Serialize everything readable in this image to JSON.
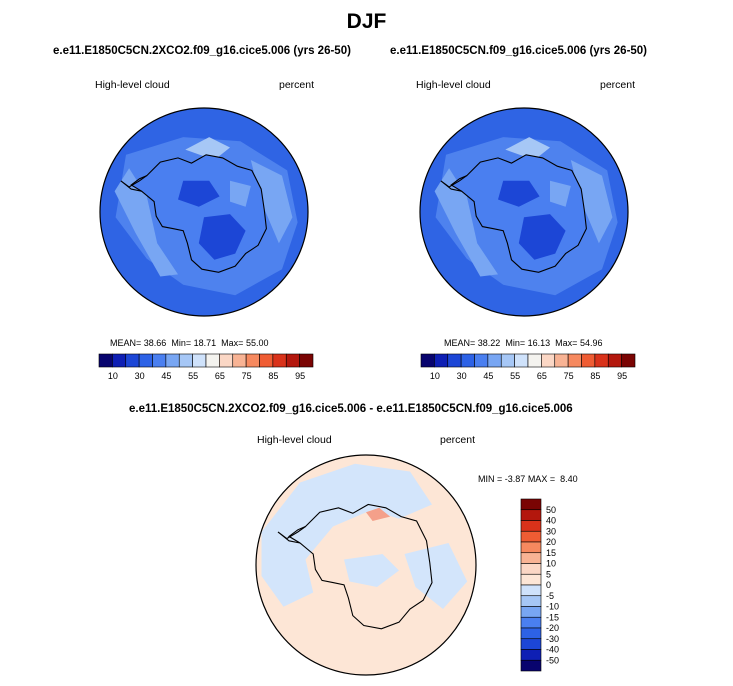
{
  "title": "DJF",
  "colormap_abs": [
    "#08046e",
    "#0e1fb4",
    "#1c46d6",
    "#2d62e6",
    "#4a7ff0",
    "#78a6f3",
    "#a6c7f6",
    "#cfe2fb",
    "#f4f3ef",
    "#fbd7c5",
    "#f8b394",
    "#f6895f",
    "#ef5c33",
    "#d9321a",
    "#b3170d",
    "#7a0403"
  ],
  "colormap_diff": [
    "#08046e",
    "#0e1fb4",
    "#1c46d6",
    "#2d62e6",
    "#4a7ff0",
    "#78a6f3",
    "#a6c7f6",
    "#cfe2fb",
    "#fde6d6",
    "#fbd7c5",
    "#f8b394",
    "#f6895f",
    "#ef5c33",
    "#d9321a",
    "#b3170d",
    "#7a0403"
  ],
  "map_colors": {
    "ocean_base": "#2f64e4",
    "ocean_light": "#4e82ee",
    "ice_base": "#4a7ff0",
    "ice_dark": "#1c46d6",
    "ice_light": "#78a6f3",
    "pale": "#a6c7f6",
    "diff_pos": "#fde6d6",
    "diff_neg": "#d3e5fb",
    "diff_hot": "#f4a08a",
    "coast": "#000000"
  },
  "chart_data": [
    {
      "type": "heatmap",
      "title": "e.e11.E1850C5CN.2XCO2.f09_g16.cice5.006 (yrs 26-50)",
      "left_label": "High-level cloud",
      "right_label": "percent",
      "stats_mean_label": "MEAN=",
      "stats_mean": "38.66",
      "stats_min_label": "Min=",
      "stats_min": "18.71",
      "stats_max_label": "Max=",
      "stats_max": "55.00",
      "colorbar_ticks": [
        "10",
        "30",
        "45",
        "55",
        "65",
        "75",
        "85",
        "95"
      ]
    },
    {
      "type": "heatmap",
      "title": "e.e11.E1850C5CN.f09_g16.cice5.006 (yrs 26-50)",
      "left_label": "High-level cloud",
      "right_label": "percent",
      "stats_mean_label": "MEAN=",
      "stats_mean": "38.22",
      "stats_min_label": "Min=",
      "stats_min": "16.13",
      "stats_max_label": "Max=",
      "stats_max": "54.96",
      "colorbar_ticks": [
        "10",
        "30",
        "45",
        "55",
        "65",
        "75",
        "85",
        "95"
      ]
    },
    {
      "type": "heatmap",
      "title": "e.e11.E1850C5CN.2XCO2.f09_g16.cice5.006 - e.e11.E1850C5CN.f09_g16.cice5.006",
      "left_label": "High-level cloud",
      "right_label": "percent",
      "stats_min_label": "MIN =",
      "stats_min": "-3.87",
      "stats_max_label": "MAX =",
      "stats_max": "8.40",
      "colorbar_ticks": [
        "50",
        "40",
        "30",
        "20",
        "15",
        "10",
        "5",
        "0",
        "-5",
        "-10",
        "-15",
        "-20",
        "-30",
        "-40",
        "-50"
      ]
    }
  ]
}
